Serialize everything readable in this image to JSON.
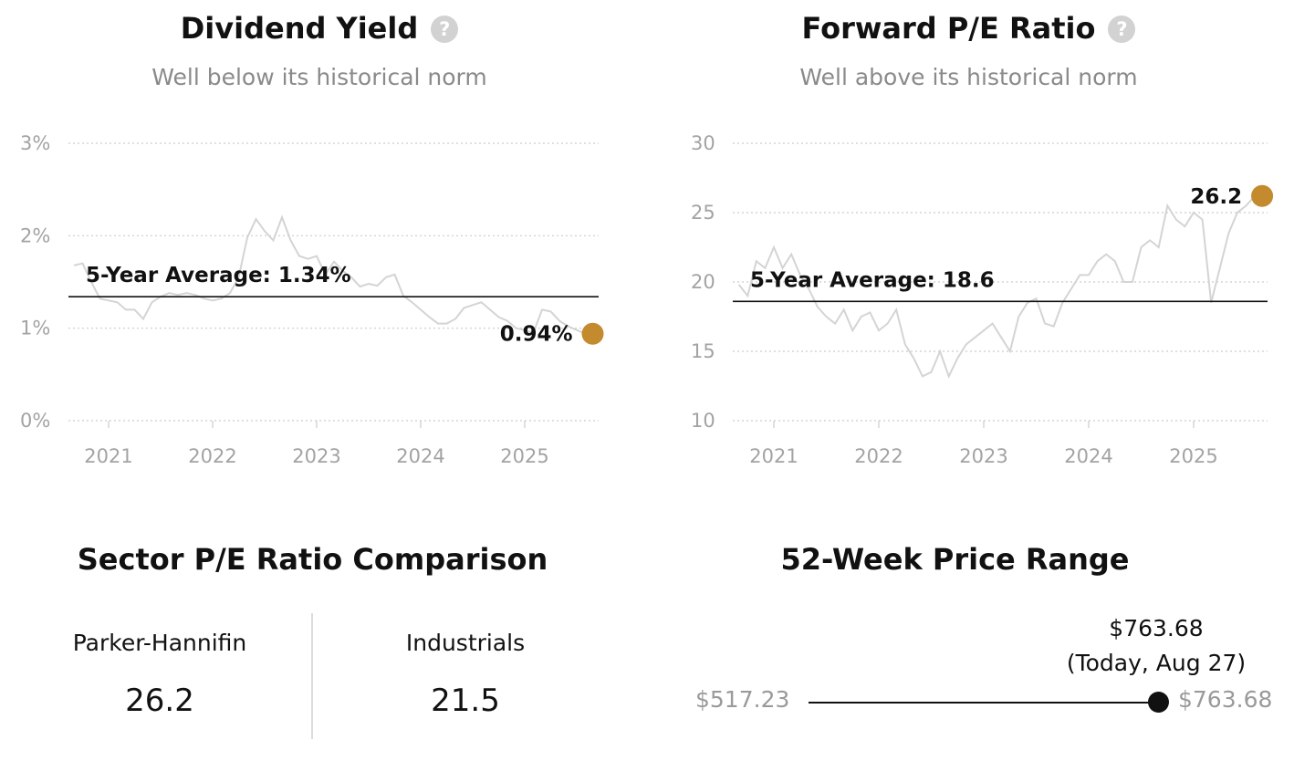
{
  "dividend": {
    "title": "Dividend Yield",
    "subtitle": "Well below its historical norm",
    "help_icon": "question-circle-icon",
    "y_ticks": [
      "0%",
      "1%",
      "2%",
      "3%"
    ],
    "x_ticks": [
      "2021",
      "2022",
      "2023",
      "2024",
      "2025"
    ],
    "avg_label": "5-Year Average: 1.34%",
    "current_label": "0.94%"
  },
  "forward_pe": {
    "title": "Forward P/E Ratio",
    "subtitle": "Well above its historical norm",
    "help_icon": "question-circle-icon",
    "y_ticks": [
      "10",
      "15",
      "20",
      "25",
      "30"
    ],
    "x_ticks": [
      "2021",
      "2022",
      "2023",
      "2024",
      "2025"
    ],
    "avg_label": "5-Year Average: 18.6",
    "current_label": "26.2"
  },
  "sector": {
    "title": "Sector P/E Ratio Comparison",
    "left_name": "Parker-Hannifin",
    "left_value": "26.2",
    "right_name": "Industrials",
    "right_value": "21.5"
  },
  "range52": {
    "title": "52-Week Price Range",
    "low": "$517.23",
    "high": "$763.68",
    "current_price": "$763.68",
    "current_note": "(Today, Aug 27)",
    "position_fraction": 1.0
  },
  "colors": {
    "accent": "#C48A2E",
    "line": "#d4d4d4",
    "avg": "#111111",
    "grid": "#cccccc"
  },
  "chart_data": [
    {
      "type": "line",
      "title": "Dividend Yield",
      "x_ticks": [
        "2021",
        "2022",
        "2023",
        "2024",
        "2025"
      ],
      "ylim": [
        0,
        3
      ],
      "y_unit": "%",
      "grid": true,
      "series": [
        {
          "x": [
            "2020-09",
            "2020-10",
            "2020-11",
            "2020-12",
            "2021-01",
            "2021-02",
            "2021-03",
            "2021-04",
            "2021-05",
            "2021-06",
            "2021-07",
            "2021-08",
            "2021-09",
            "2021-10",
            "2021-11",
            "2021-12",
            "2022-01",
            "2022-02",
            "2022-03",
            "2022-04",
            "2022-05",
            "2022-06",
            "2022-07",
            "2022-08",
            "2022-09",
            "2022-10",
            "2022-11",
            "2022-12",
            "2023-01",
            "2023-02",
            "2023-03",
            "2023-04",
            "2023-05",
            "2023-06",
            "2023-07",
            "2023-08",
            "2023-09",
            "2023-10",
            "2023-11",
            "2023-12",
            "2024-01",
            "2024-02",
            "2024-03",
            "2024-04",
            "2024-05",
            "2024-06",
            "2024-07",
            "2024-08",
            "2024-09",
            "2024-10",
            "2024-11",
            "2024-12",
            "2025-01",
            "2025-02",
            "2025-03",
            "2025-04",
            "2025-05",
            "2025-06",
            "2025-07",
            "2025-08"
          ],
          "values": [
            1.68,
            1.7,
            1.5,
            1.32,
            1.3,
            1.28,
            1.2,
            1.2,
            1.1,
            1.28,
            1.34,
            1.38,
            1.36,
            1.38,
            1.36,
            1.32,
            1.3,
            1.32,
            1.38,
            1.55,
            1.98,
            2.18,
            2.05,
            1.95,
            2.2,
            1.95,
            1.78,
            1.75,
            1.78,
            1.58,
            1.72,
            1.62,
            1.55,
            1.45,
            1.48,
            1.46,
            1.55,
            1.58,
            1.35,
            1.28,
            1.2,
            1.12,
            1.05,
            1.05,
            1.1,
            1.22,
            1.25,
            1.28,
            1.2,
            1.12,
            1.08,
            1.0,
            0.98,
            0.95,
            1.2,
            1.18,
            1.08,
            1.02,
            0.98,
            0.94
          ]
        },
        {
          "name": "5-Year Average",
          "value": 1.34
        }
      ],
      "current": {
        "label": "0.94%",
        "value": 0.94
      }
    },
    {
      "type": "line",
      "title": "Forward P/E Ratio",
      "x_ticks": [
        "2021",
        "2022",
        "2023",
        "2024",
        "2025"
      ],
      "ylim": [
        10,
        30
      ],
      "grid": true,
      "series": [
        {
          "x": [
            "2020-09",
            "2020-10",
            "2020-11",
            "2020-12",
            "2021-01",
            "2021-02",
            "2021-03",
            "2021-04",
            "2021-05",
            "2021-06",
            "2021-07",
            "2021-08",
            "2021-09",
            "2021-10",
            "2021-11",
            "2021-12",
            "2022-01",
            "2022-02",
            "2022-03",
            "2022-04",
            "2022-05",
            "2022-06",
            "2022-07",
            "2022-08",
            "2022-09",
            "2022-10",
            "2022-11",
            "2022-12",
            "2023-01",
            "2023-02",
            "2023-03",
            "2023-04",
            "2023-05",
            "2023-06",
            "2023-07",
            "2023-08",
            "2023-09",
            "2023-10",
            "2023-11",
            "2023-12",
            "2024-01",
            "2024-02",
            "2024-03",
            "2024-04",
            "2024-05",
            "2024-06",
            "2024-07",
            "2024-08",
            "2024-09",
            "2024-10",
            "2024-11",
            "2024-12",
            "2025-01",
            "2025-02",
            "2025-03",
            "2025-04",
            "2025-05",
            "2025-06",
            "2025-07",
            "2025-08"
          ],
          "values": [
            19.8,
            19.0,
            21.5,
            21.0,
            22.5,
            21.0,
            22.0,
            20.5,
            19.5,
            18.2,
            17.5,
            17.0,
            18.0,
            16.5,
            17.5,
            17.8,
            16.5,
            17.0,
            18.0,
            15.5,
            14.5,
            13.2,
            13.5,
            15.0,
            13.2,
            14.5,
            15.5,
            16.0,
            16.5,
            17.0,
            16.0,
            15.0,
            17.5,
            18.5,
            18.8,
            17.0,
            16.8,
            18.5,
            19.5,
            20.5,
            20.5,
            21.5,
            22.0,
            21.5,
            20.0,
            20.0,
            22.5,
            23.0,
            22.5,
            25.5,
            24.5,
            24.0,
            25.0,
            24.5,
            18.5,
            21.0,
            23.5,
            25.0,
            25.5,
            26.2
          ]
        },
        {
          "name": "5-Year Average",
          "value": 18.6
        }
      ],
      "current": {
        "label": "26.2",
        "value": 26.2
      }
    }
  ]
}
